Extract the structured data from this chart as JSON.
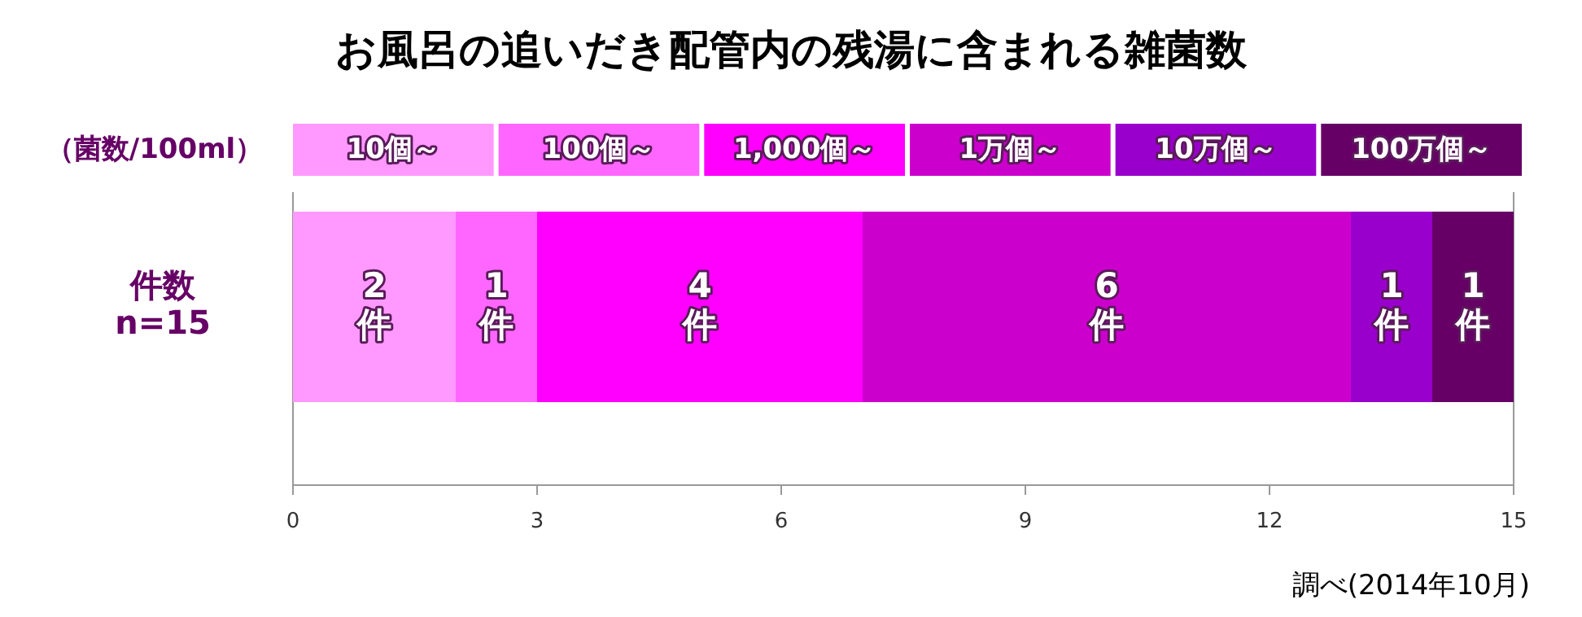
{
  "chart_data": {
    "type": "bar",
    "title": "お風呂の追いだき配管内の残湯に含まれる雑菌数",
    "orientation": "horizontal",
    "stacked": true,
    "legend": "top",
    "legend_title": "（菌数/100ml）",
    "categories": [
      "件数\nn=15"
    ],
    "xlim": [
      0,
      15
    ],
    "xticks": [
      0,
      3,
      6,
      9,
      12,
      15
    ],
    "grid": false,
    "series": [
      {
        "name": "10個～",
        "color": "#ff99ff",
        "values": [
          2
        ],
        "value_labels": [
          "2\n件"
        ]
      },
      {
        "name": "100個～",
        "color": "#ff66ff",
        "values": [
          1
        ],
        "value_labels": [
          "1\n件"
        ]
      },
      {
        "name": "1,000個～",
        "color": "#ff00ff",
        "values": [
          4
        ],
        "value_labels": [
          "4\n件"
        ]
      },
      {
        "name": "1万個～",
        "color": "#cc00cc",
        "values": [
          6
        ],
        "value_labels": [
          "6\n件"
        ]
      },
      {
        "name": "10万個～",
        "color": "#9900cc",
        "values": [
          1
        ],
        "value_labels": [
          "1\n件"
        ]
      },
      {
        "name": "100万個～",
        "color": "#660066",
        "values": [
          1
        ],
        "value_labels": [
          "1\n件"
        ]
      }
    ],
    "annotations": [
      "調べ(2014年10月)"
    ]
  }
}
